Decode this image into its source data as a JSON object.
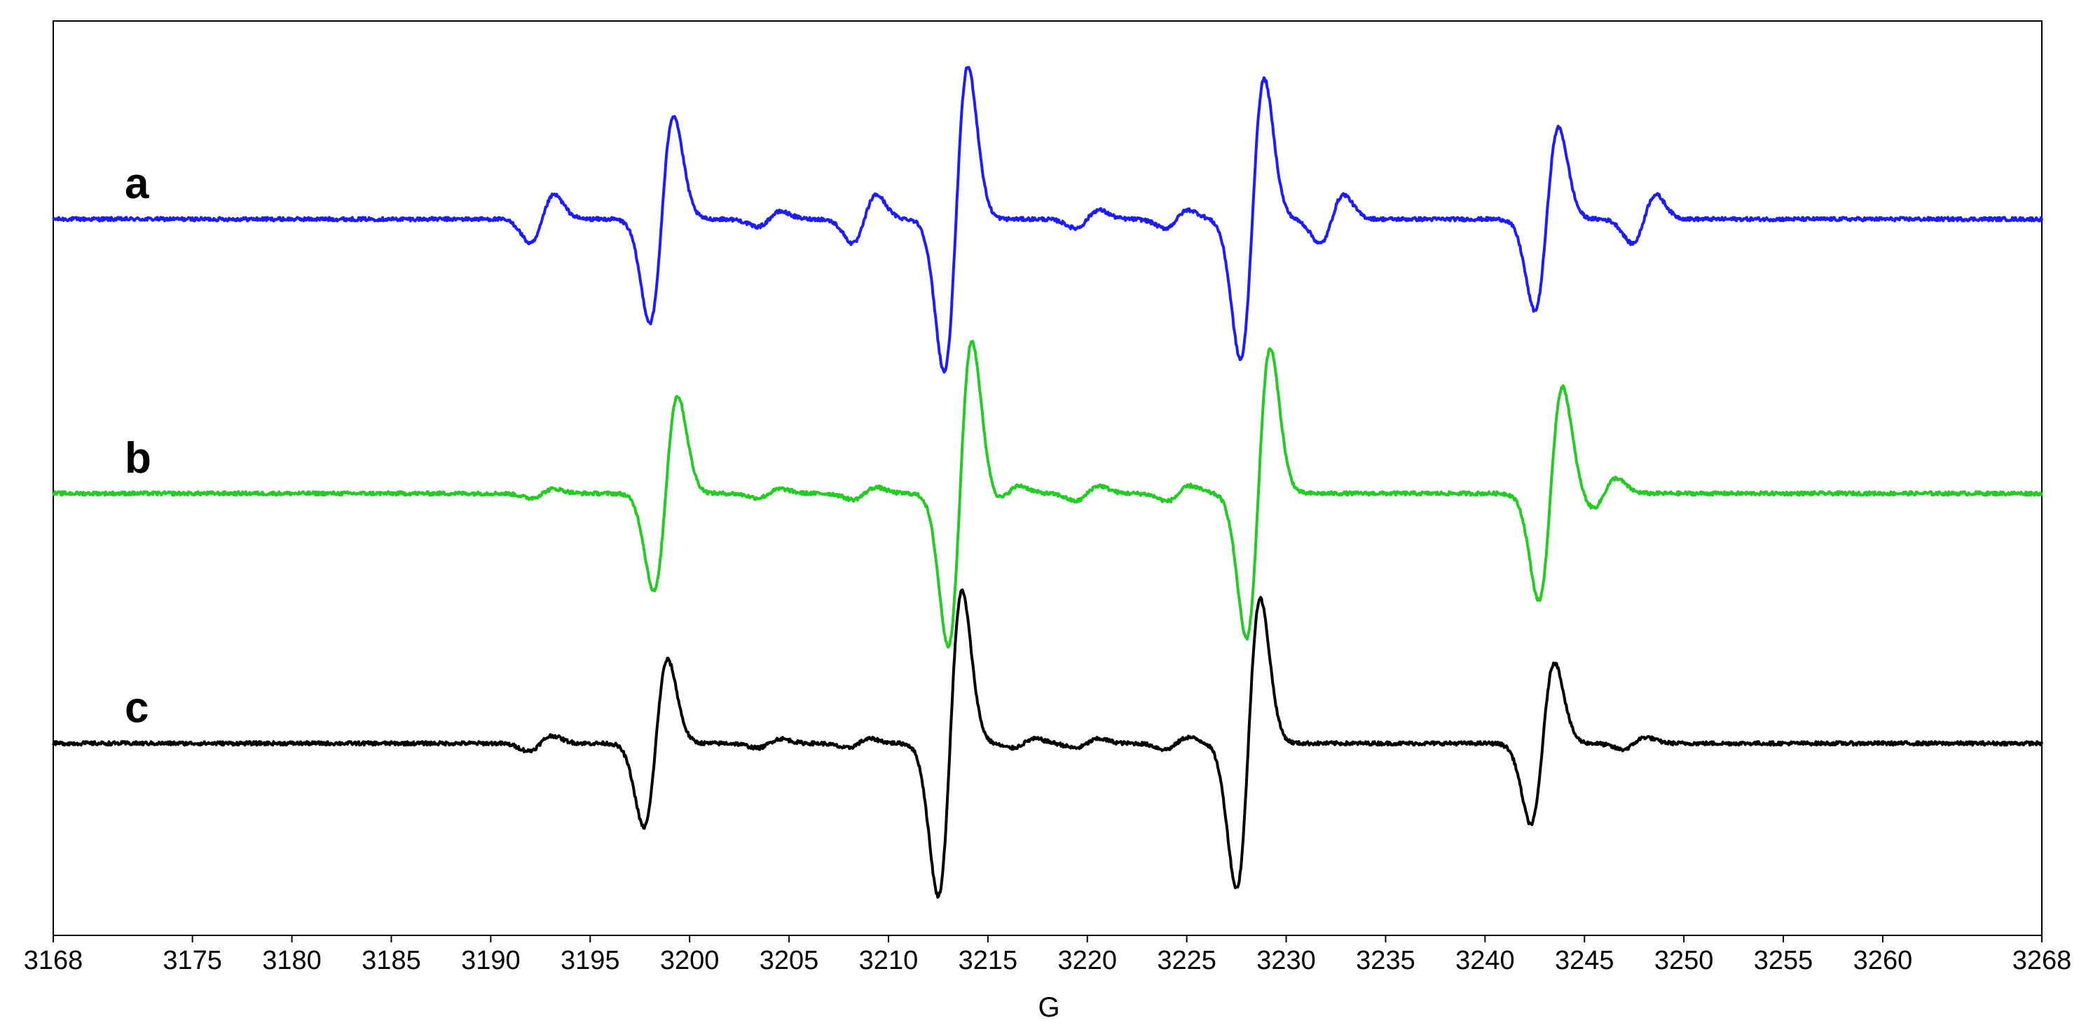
{
  "chart_data": {
    "type": "line",
    "title": "",
    "xlabel": "G",
    "ylabel": "",
    "xlim": [
      3168,
      3268
    ],
    "xticks": [
      3168,
      3175,
      3180,
      3185,
      3190,
      3195,
      3200,
      3205,
      3210,
      3215,
      3220,
      3225,
      3230,
      3235,
      3240,
      3245,
      3250,
      3255,
      3260,
      3268
    ],
    "xtick_labels": [
      "3168",
      "3175",
      "3180",
      "3185",
      "3190",
      "3195",
      "3200",
      "3205",
      "3210",
      "3215",
      "3220",
      "3225",
      "3230",
      "3235",
      "3240",
      "3245",
      "3250",
      "3255",
      "3260",
      "3268"
    ],
    "y_ticks_shown": false,
    "grid": false,
    "legend": "none (series labeled inline at left)",
    "series": [
      {
        "name": "a",
        "color": "#1c1cff",
        "baseline": 0.9,
        "lines": [
          {
            "center": 3192.6,
            "amp": 0.16
          },
          {
            "center": 3198.6,
            "amp": 0.68
          },
          {
            "center": 3204.0,
            "amp": 0.05
          },
          {
            "center": 3208.8,
            "amp": 0.16
          },
          {
            "center": 3213.4,
            "amp": 1.0
          },
          {
            "center": 3220.0,
            "amp": 0.06
          },
          {
            "center": 3224.5,
            "amp": 0.06
          },
          {
            "center": 3228.3,
            "amp": 0.92
          },
          {
            "center": 3232.3,
            "amp": 0.16
          },
          {
            "center": 3243.1,
            "amp": 0.6
          },
          {
            "center": 3248.0,
            "amp": 0.16
          }
        ]
      },
      {
        "name": "b",
        "color": "#22cc22",
        "baseline": 0.0,
        "lines": [
          {
            "center": 3192.6,
            "amp": 0.03
          },
          {
            "center": 3198.8,
            "amp": 0.64
          },
          {
            "center": 3204.0,
            "amp": 0.03
          },
          {
            "center": 3208.8,
            "amp": 0.04
          },
          {
            "center": 3213.6,
            "amp": 1.0
          },
          {
            "center": 3216.0,
            "amp": 0.05
          },
          {
            "center": 3220.0,
            "amp": 0.05
          },
          {
            "center": 3224.6,
            "amp": 0.05
          },
          {
            "center": 3228.6,
            "amp": 0.95
          },
          {
            "center": 3243.3,
            "amp": 0.7
          },
          {
            "center": 3246.0,
            "amp": 0.1
          }
        ]
      },
      {
        "name": "c",
        "color": "#000000",
        "baseline": -0.82,
        "lines": [
          {
            "center": 3192.5,
            "amp": 0.05
          },
          {
            "center": 3198.3,
            "amp": 0.55
          },
          {
            "center": 3204.0,
            "amp": 0.03
          },
          {
            "center": 3208.5,
            "amp": 0.03
          },
          {
            "center": 3213.1,
            "amp": 1.0
          },
          {
            "center": 3216.8,
            "amp": 0.03
          },
          {
            "center": 3220.0,
            "amp": 0.03
          },
          {
            "center": 3224.5,
            "amp": 0.04
          },
          {
            "center": 3228.1,
            "amp": 0.95
          },
          {
            "center": 3242.9,
            "amp": 0.53
          },
          {
            "center": 3247.5,
            "amp": 0.04
          }
        ]
      }
    ]
  }
}
